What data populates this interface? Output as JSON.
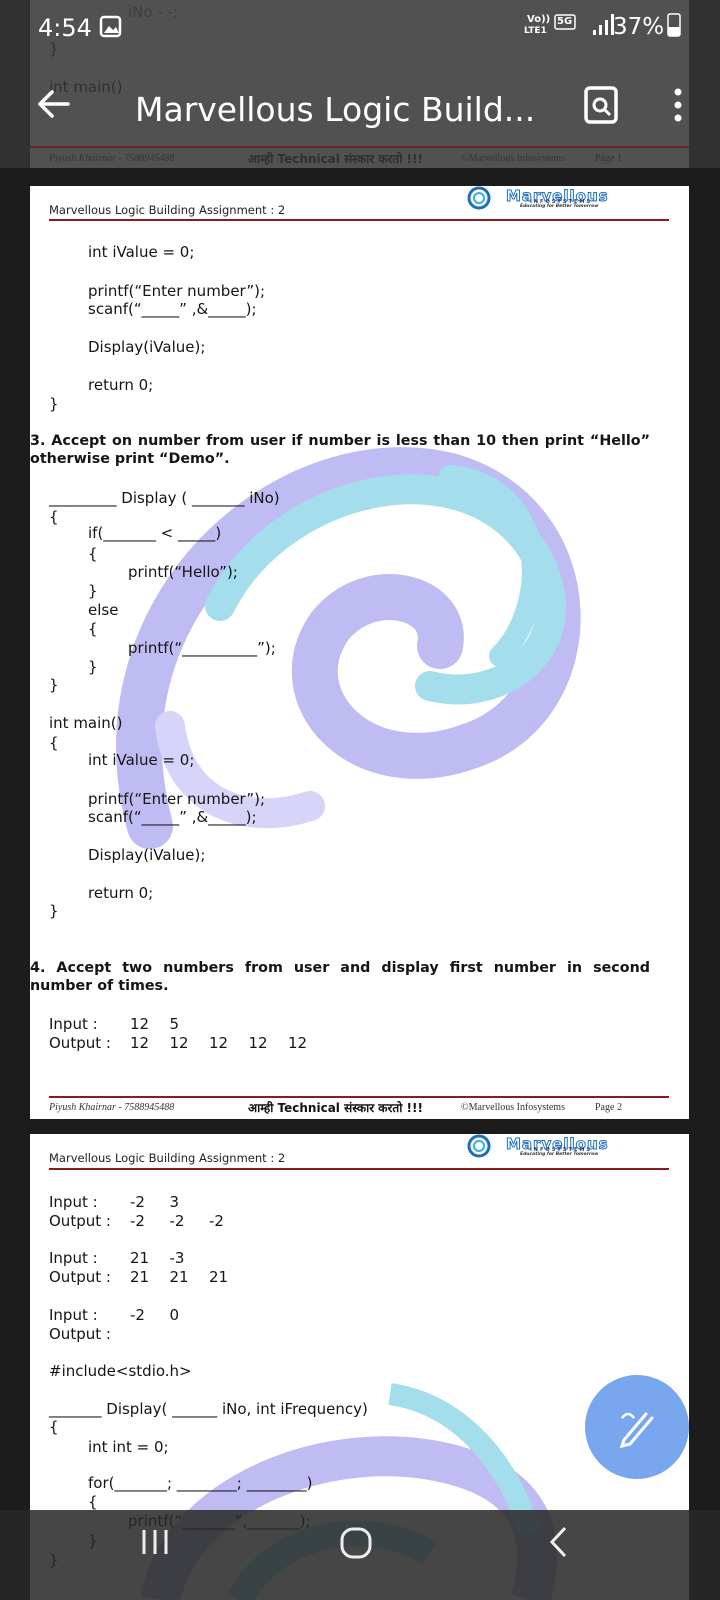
{
  "status_bar": {
    "time": "4:54",
    "volte": "Vo))",
    "lte": "LTE1",
    "signal_type": "5G",
    "battery": "37%"
  },
  "toolbar": {
    "title": "Marvellous Logic Build..."
  },
  "page_1": {
    "code_lines": [
      "iNo - -;",
      "}",
      "int main()"
    ],
    "footer": {
      "author": "Piyush Khairnar - 7588945488",
      "motto": "आम्ही Technical संस्कार करतो !!!",
      "copyright": "©Marvellous Infosystems",
      "page": "Page 1"
    }
  },
  "page_2": {
    "header": "Marvellous Logic Building Assignment : 2",
    "logo": {
      "name": "Marvellous",
      "tagline": "INFOSYSTEMS",
      "motto": "Educating for Better Tomorrow"
    },
    "code_1": [
      "int iValue = 0;",
      "printf(“Enter number”);",
      "scanf(“_____” ,&_____);",
      "Display(iValue);",
      "return 0;",
      "}"
    ],
    "question_3": "3. Accept on number from user if number is less than 10 then print “Hello” otherwise print “Demo”.",
    "code_2": [
      "_________ Display ( _______ iNo)",
      "{",
      "if(_______ < _____)",
      "{",
      "printf(“Hello”);",
      "}",
      "else",
      "{",
      "printf(“__________”);",
      "}",
      "}",
      "int main()",
      "{",
      "int iValue = 0;",
      "printf(“Enter number”);",
      "scanf(“_____” ,&_____);",
      "Display(iValue);",
      "return 0;",
      "}"
    ],
    "question_4": "4. Accept two numbers from user and display first number in second number of times.",
    "examples": [
      {
        "label": "Input :",
        "values": [
          "12",
          "5"
        ]
      },
      {
        "label": "Output :",
        "values": [
          "12",
          "12",
          "12",
          "12",
          "12"
        ]
      }
    ],
    "footer": {
      "author": "Piyush Khairnar - 7588945488",
      "motto": "आम्ही Technical संस्कार करतो !!!",
      "copyright": "©Marvellous Infosystems",
      "page": "Page 2"
    }
  },
  "page_3": {
    "header": "Marvellous Logic Building Assignment : 2",
    "logo": {
      "name": "Marvellous",
      "tagline": "INFOSYSTEMS",
      "motto": "Educating for Better Tomorrow"
    },
    "examples": [
      {
        "label": "Input :",
        "values": [
          "-2",
          "3"
        ]
      },
      {
        "label": "Output :",
        "values": [
          "-2",
          "-2",
          "-2"
        ]
      },
      {
        "label": "Input :",
        "values": [
          "21",
          "-3"
        ]
      },
      {
        "label": "Output :",
        "values": [
          "21",
          "21",
          "21"
        ]
      },
      {
        "label": "Input :",
        "values": [
          "-2",
          "0"
        ]
      },
      {
        "label": "Output :",
        "values": []
      }
    ],
    "code": [
      "#include<stdio.h>",
      "_______ Display( ______ iNo, int iFrequency)",
      "{",
      "int int = 0;",
      "for(_______; ________; ________)",
      "{",
      "printf(“_______”,_______);",
      "}",
      "}"
    ]
  }
}
